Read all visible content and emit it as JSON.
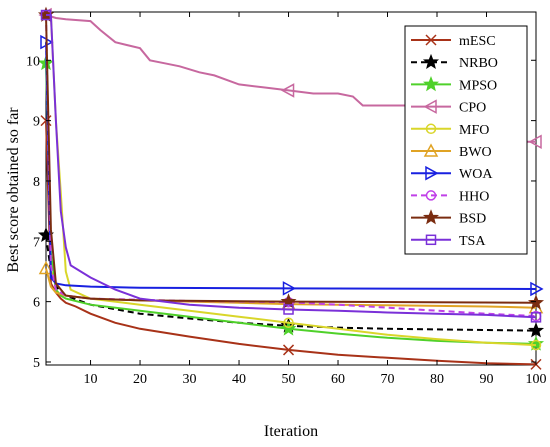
{
  "chart_data": {
    "type": "line",
    "xlabel": "Iteration",
    "ylabel": "Best score obtained so far",
    "xlim": [
      1,
      100
    ],
    "ylim": [
      4.95,
      10.8
    ],
    "xticks": [
      10,
      20,
      30,
      40,
      50,
      60,
      70,
      80,
      90,
      100
    ],
    "yticks": [
      5,
      6,
      7,
      8,
      9,
      10
    ],
    "grid": false,
    "legend_position": "top-right",
    "series": [
      {
        "name": "mESC",
        "color": "#a83218",
        "dash": "",
        "marker": "x",
        "x": [
          1,
          2,
          3,
          4,
          5,
          7,
          10,
          15,
          20,
          30,
          40,
          50,
          60,
          70,
          80,
          90,
          100
        ],
        "y": [
          9.0,
          6.3,
          6.15,
          6.05,
          5.98,
          5.92,
          5.8,
          5.65,
          5.55,
          5.42,
          5.3,
          5.2,
          5.12,
          5.07,
          5.02,
          4.98,
          4.96
        ]
      },
      {
        "name": "NRBO",
        "color": "#000000",
        "dash": "6,4",
        "marker": "star",
        "x": [
          1,
          2,
          3,
          5,
          10,
          20,
          30,
          40,
          50,
          60,
          70,
          80,
          90,
          100
        ],
        "y": [
          7.1,
          6.5,
          6.25,
          6.1,
          5.95,
          5.8,
          5.72,
          5.65,
          5.6,
          5.57,
          5.55,
          5.54,
          5.53,
          5.52
        ]
      },
      {
        "name": "MPSO",
        "color": "#4fd12a",
        "dash": "",
        "marker": "star",
        "x": [
          1,
          2,
          3,
          4,
          5,
          10,
          20,
          30,
          40,
          50,
          60,
          70,
          80,
          90,
          100
        ],
        "y": [
          9.95,
          6.8,
          6.2,
          6.1,
          6.05,
          5.95,
          5.85,
          5.75,
          5.65,
          5.55,
          5.47,
          5.4,
          5.35,
          5.32,
          5.3
        ]
      },
      {
        "name": "CPO",
        "color": "#c7689f",
        "dash": "",
        "marker": "triangle-left",
        "x": [
          1,
          3,
          5,
          10,
          12,
          15,
          20,
          22,
          25,
          28,
          30,
          32,
          35,
          40,
          45,
          50,
          55,
          60,
          63,
          65,
          70,
          75,
          80,
          85,
          88,
          90,
          92,
          95,
          100
        ],
        "y": [
          10.75,
          10.7,
          10.68,
          10.65,
          10.5,
          10.3,
          10.2,
          10.0,
          9.95,
          9.9,
          9.85,
          9.8,
          9.75,
          9.6,
          9.55,
          9.5,
          9.45,
          9.45,
          9.4,
          9.25,
          9.25,
          9.25,
          9.2,
          9.1,
          9.0,
          8.95,
          8.7,
          8.65,
          8.65
        ]
      },
      {
        "name": "MFO",
        "color": "#d9d62a",
        "dash": "",
        "marker": "circle",
        "x": [
          1,
          2,
          3,
          4,
          5,
          6,
          10,
          20,
          30,
          40,
          50,
          60,
          70,
          80,
          90,
          100
        ],
        "y": [
          10.75,
          10.75,
          9.0,
          7.8,
          6.5,
          6.2,
          6.05,
          5.95,
          5.85,
          5.75,
          5.65,
          5.55,
          5.45,
          5.38,
          5.32,
          5.28
        ]
      },
      {
        "name": "BWO",
        "color": "#e0a324",
        "dash": "",
        "marker": "triangle-up",
        "x": [
          1,
          2,
          3,
          5,
          10,
          20,
          30,
          40,
          50,
          60,
          70,
          80,
          90,
          100
        ],
        "y": [
          6.55,
          6.25,
          6.15,
          6.1,
          6.05,
          6.02,
          6.0,
          5.98,
          5.96,
          5.95,
          5.94,
          5.93,
          5.92,
          5.9
        ]
      },
      {
        "name": "WOA",
        "color": "#1820e0",
        "dash": "",
        "marker": "triangle-right",
        "x": [
          1,
          2,
          3,
          5,
          10,
          20,
          50,
          100
        ],
        "y": [
          10.3,
          6.4,
          6.3,
          6.27,
          6.25,
          6.23,
          6.22,
          6.21
        ]
      },
      {
        "name": "HHO",
        "color": "#c040e8",
        "dash": "6,4",
        "marker": "circle",
        "x": [
          1,
          2,
          3,
          5,
          10,
          20,
          30,
          40,
          50,
          60,
          70,
          80,
          90,
          100
        ],
        "y": [
          10.75,
          6.6,
          6.2,
          6.1,
          6.05,
          6.03,
          6.01,
          6.0,
          5.99,
          5.95,
          5.9,
          5.85,
          5.8,
          5.76
        ]
      },
      {
        "name": "BSD",
        "color": "#7a2c10",
        "dash": "",
        "marker": "star",
        "x": [
          1,
          2,
          3,
          5,
          10,
          20,
          50,
          100
        ],
        "y": [
          10.75,
          7.2,
          6.3,
          6.1,
          6.05,
          6.02,
          6.0,
          5.98
        ]
      },
      {
        "name": "TSA",
        "color": "#7a30d8",
        "dash": "",
        "marker": "square",
        "x": [
          1,
          2,
          3,
          4,
          5,
          6,
          10,
          15,
          20,
          30,
          40,
          50,
          60,
          70,
          80,
          90,
          100
        ],
        "y": [
          10.75,
          10.75,
          9.0,
          7.5,
          6.9,
          6.6,
          6.4,
          6.2,
          6.05,
          5.95,
          5.9,
          5.87,
          5.85,
          5.82,
          5.8,
          5.78,
          5.74
        ]
      }
    ]
  }
}
